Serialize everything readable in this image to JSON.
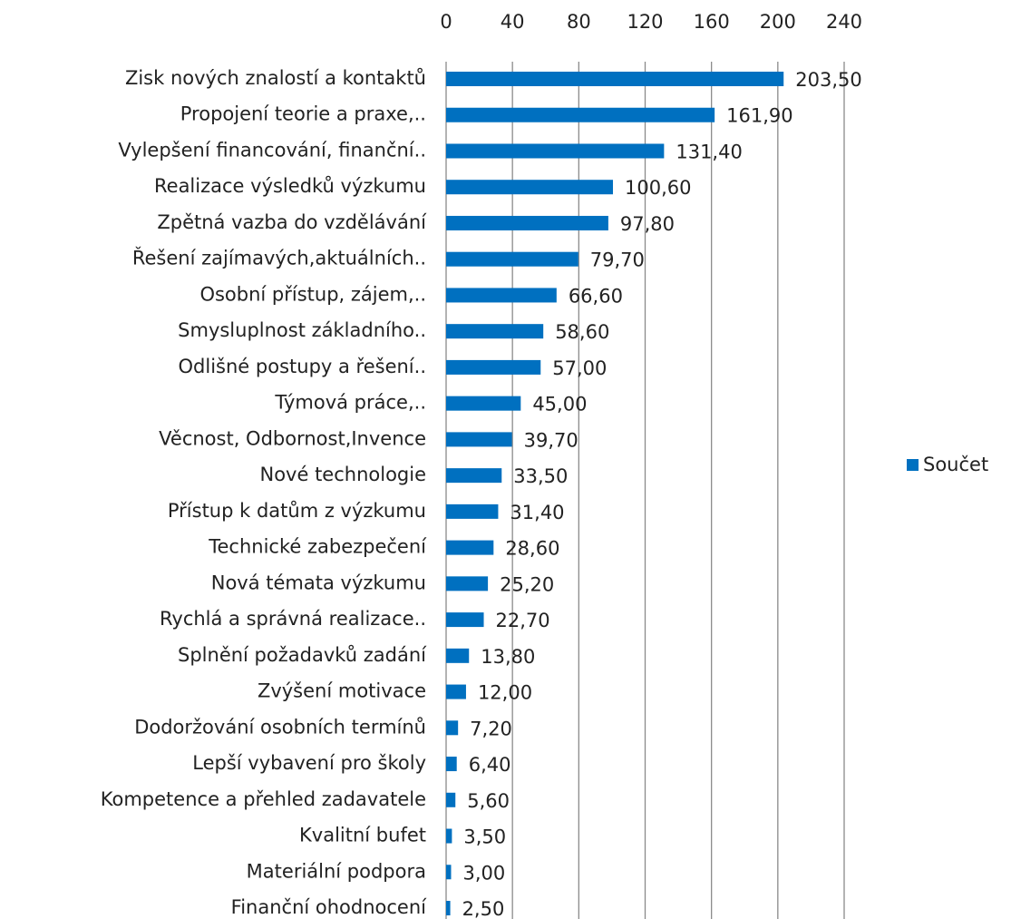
{
  "chart_data": {
    "type": "bar",
    "categories": [
      "Zisk nových znalostí a kontaktů",
      "Propojení teorie a praxe,..",
      "Vylepšení financování, finanční..",
      "Realizace výsledků výzkumu",
      "Zpětná vazba do vzdělávání",
      "Řešení zajímavých,aktuálních..",
      "Osobní přístup, zájem,..",
      "Smysluplnost základního..",
      "Odlišné postupy a řešení..",
      "Týmová práce,..",
      "Věcnost, Odbornost,Invence",
      "Nové technologie",
      "Přístup k datům z výzkumu",
      "Technické zabezpečení",
      "Nová témata výzkumu",
      "Rychlá a správná realizace..",
      "Splnění požadavků zadání",
      "Zvýšení motivace",
      "Dodoržování osobních termínů",
      "Lepší vybavení pro školy",
      "Kompetence a přehled zadavatele",
      "Kvalitní bufet",
      "Materiální podpora",
      "Finanční ohodnocení"
    ],
    "series": [
      {
        "name": "Součet",
        "color": "#0070c0",
        "values": [
          203.5,
          161.9,
          131.4,
          100.6,
          97.8,
          79.7,
          66.6,
          58.6,
          57.0,
          45.0,
          39.7,
          33.5,
          31.4,
          28.6,
          25.2,
          22.7,
          13.8,
          12.0,
          7.2,
          6.4,
          5.6,
          3.5,
          3.0,
          2.5
        ],
        "value_labels": [
          "203,50",
          "161,90",
          "131,40",
          "100,60",
          "97,80",
          "79,70",
          "66,60",
          "58,60",
          "57,00",
          "45,00",
          "39,70",
          "33,50",
          "31,40",
          "28,60",
          "25,20",
          "22,70",
          "13,80",
          "12,00",
          "7,20",
          "6,40",
          "5,60",
          "3,50",
          "3,00",
          "2,50"
        ]
      }
    ],
    "xlim": [
      0,
      240
    ],
    "xticks": [
      0,
      40,
      80,
      120,
      160,
      200,
      240
    ],
    "grid": true,
    "legend": "right"
  }
}
